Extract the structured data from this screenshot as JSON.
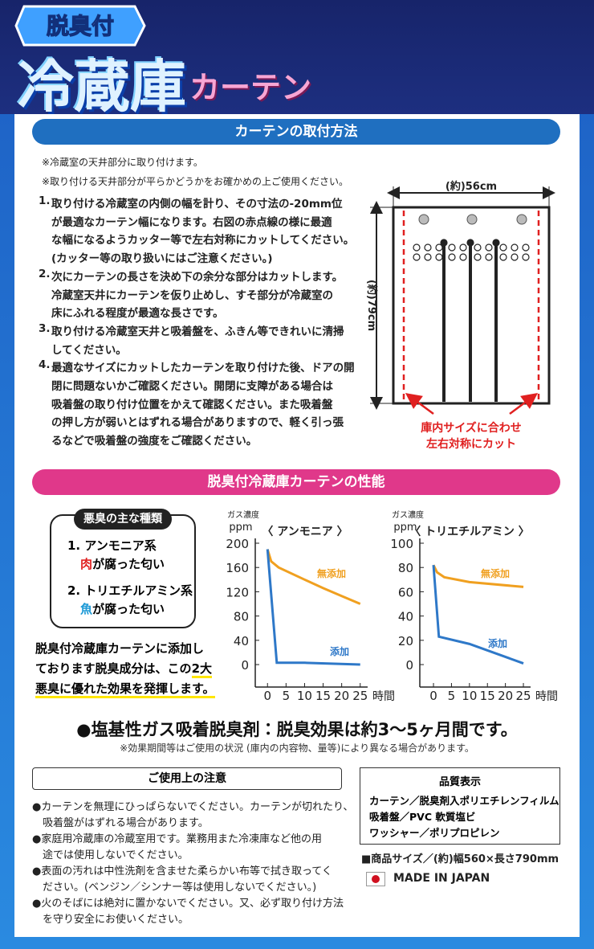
{
  "header": {
    "badge": "脱臭付",
    "title_main": "冷蔵庫",
    "title_sub": "カーテン"
  },
  "section1": {
    "title": "カーテンの取付方法",
    "notes": [
      "※冷蔵室の天井部分に取り付けます。",
      "※取り付ける天井部分が平らかどうかをお確かめの上ご使用ください。"
    ],
    "steps": [
      {
        "num": "1.",
        "lines": [
          "取り付ける冷蔵室の内側の幅を計り、その寸法の-20mm位",
          "が最適なカーテン幅になります。右図の赤点線の様に最適",
          "な幅になるようカッター等で左右対称にカットしてください。",
          "(カッター等の取り扱いにはご注意ください。)"
        ]
      },
      {
        "num": "2.",
        "lines": [
          "次にカーテンの長さを決め下の余分な部分はカットします。",
          "冷蔵室天井にカーテンを仮り止めし、すそ部分が冷蔵室の",
          "床にふれる程度が最適な長さです。"
        ]
      },
      {
        "num": "3.",
        "lines": [
          "取り付ける冷蔵室天井と吸着盤を、ふきん等できれいに清掃",
          "してください。"
        ]
      },
      {
        "num": "4.",
        "lines": [
          "最適なサイズにカットしたカーテンを取り付けた後、ドアの開",
          "閉に問題ないかご確認ください。開閉に支障がある場合は",
          "吸着盤の取り付け位置をかえて確認ください。また吸着盤",
          "の押し方が弱いとはずれる場合がありますので、軽く引っ張",
          "るなどで吸着盤の強度をご確認ください。"
        ]
      }
    ],
    "diagram": {
      "width_label": "(約)56cm",
      "height_label": "(約)79cm",
      "caption": [
        "庫内サイズに合わせ",
        "左右対称にカット"
      ]
    }
  },
  "section2": {
    "title": "脱臭付冷蔵庫カーテンの性能",
    "odor_box": {
      "title": "悪臭の主な種類",
      "items": [
        {
          "label": "1. アンモニア系",
          "key": "肉",
          "rest": "が腐った匂い"
        },
        {
          "label": "2. トリエチルアミン系",
          "key": "魚",
          "rest": "が腐った匂い"
        }
      ]
    },
    "description": [
      [
        "脱臭付冷蔵庫カーテンに添加し"
      ],
      [
        "ております脱臭成分は、この",
        "2大"
      ],
      [
        "悪臭に優れた効果を発揮します。"
      ]
    ],
    "headline": "●塩基性ガス吸着脱臭剤：脱臭効果は約3〜5ヶ月間です。",
    "headline_note": "※効果期間等はご使用の状況 (庫内の内容物、量等)により異なる場合があります。"
  },
  "chart_data": [
    {
      "type": "line",
      "title": "〈 アンモニア 〉",
      "y_label": "ガス濃度",
      "y_unit": "ppm",
      "x_label": "時間",
      "xlim": [
        -3.3,
        27
      ],
      "xticks": [
        0,
        5,
        10,
        15,
        20,
        25
      ],
      "ylim": [
        -37,
        200
      ],
      "yticks": [
        0,
        40,
        80,
        120,
        160,
        200
      ],
      "series": [
        {
          "name": "無添加",
          "color": "#f0a020",
          "x": [
            0,
            1,
            3,
            10,
            15,
            20,
            25
          ],
          "values": [
            190,
            170,
            160,
            140,
            126,
            113,
            100
          ]
        },
        {
          "name": "添加",
          "color": "#2e78c8",
          "x": [
            0,
            2.5,
            10,
            25
          ],
          "values": [
            190,
            3,
            3,
            0
          ]
        }
      ]
    },
    {
      "type": "line",
      "title": "〈 トリエチルアミン 〉",
      "y_label": "ガス濃度",
      "y_unit": "ppm",
      "x_label": "時間",
      "xlim": [
        -3.8,
        27
      ],
      "xticks": [
        0,
        5,
        10,
        15,
        20,
        25
      ],
      "ylim": [
        -18.5,
        100
      ],
      "yticks": [
        0,
        20,
        40,
        60,
        80,
        100
      ],
      "series": [
        {
          "name": "無添加",
          "color": "#f0a020",
          "x": [
            0,
            1,
            3,
            10,
            25
          ],
          "values": [
            82,
            76,
            72,
            68,
            64
          ]
        },
        {
          "name": "添加",
          "color": "#2e78c8",
          "x": [
            0,
            1.5,
            10,
            25
          ],
          "values": [
            82,
            23,
            17,
            1
          ]
        }
      ]
    }
  ],
  "caution": {
    "title": "ご使用上の注意",
    "items": [
      [
        "●カーテンを無理にひっぱらないでください。カーテンが切れたり、",
        "　吸着盤がはずれる場合があります。"
      ],
      [
        "●家庭用冷蔵庫の冷蔵室用です。業務用また冷凍庫など他の用",
        "　途では使用しないでください。"
      ],
      [
        "●表面の汚れは中性洗剤を含ませた柔らかい布等で拭き取ってく",
        "　ださい。(ベンジン／シンナー等は使用しないでください。)"
      ],
      [
        "●火のそばには絶対に置かないでください。又、必ず取り付け方法",
        "　を守り安全にお使いください。"
      ]
    ]
  },
  "quality": {
    "title": "品質表示",
    "rows": [
      "カーテン／脱臭剤入ポリエチレンフィルム",
      "吸着盤／PVC 軟質塩ビ",
      "ワッシャー／ポリプロピレン"
    ],
    "size": "■商品サイズ／(約)幅560×長さ790mm",
    "origin": "MADE IN JAPAN"
  }
}
